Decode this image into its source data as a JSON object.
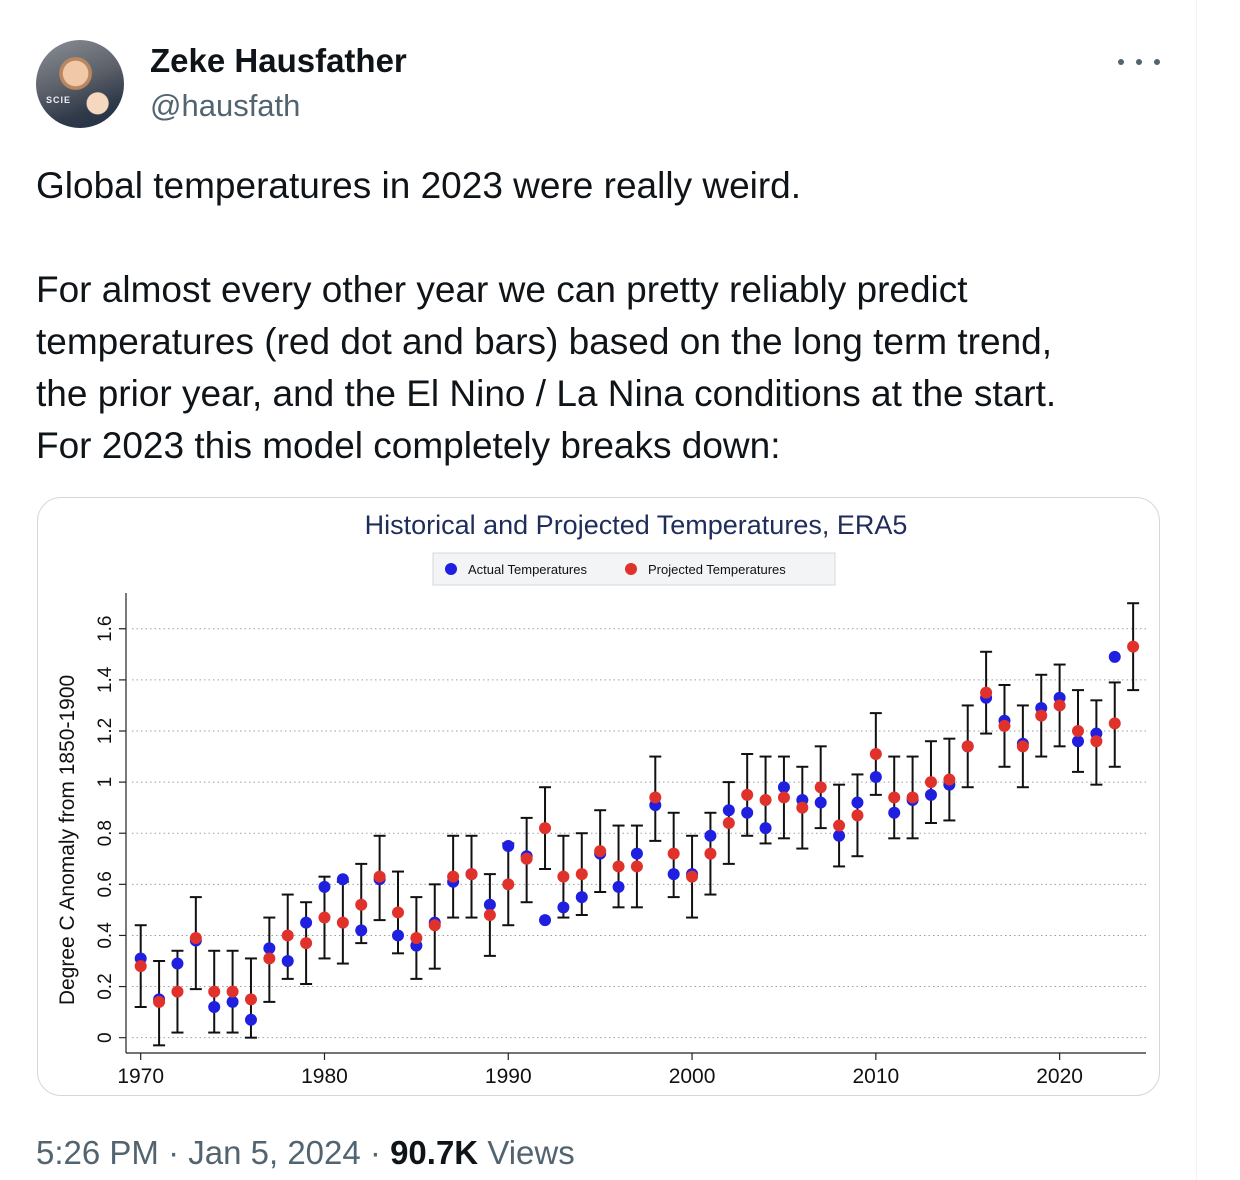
{
  "author": {
    "name": "Zeke Hausfather",
    "handle": "@hausfath",
    "avatar_text": "SCIE"
  },
  "tweet": {
    "line1": "Global temperatures in 2023 were really weird.",
    "para2": [
      "For almost every other year we can pretty reliably predict",
      "temperatures (red dot and bars) based on the long term trend,",
      "the prior year, and the El Nino / La Nina conditions at the start.",
      "For 2023 this model completely breaks down:"
    ]
  },
  "meta": {
    "time": "5:26 PM",
    "sep": "·",
    "date": "Jan 5, 2024",
    "views_count": "90.7K",
    "views_label": "Views"
  },
  "icons": {
    "more": "more-horizontal-icon"
  },
  "colors": {
    "actual": "#1f1fe0",
    "projected": "#e0312b",
    "title": "#1f2d5a"
  },
  "chart_data": {
    "type": "scatter",
    "title": "Historical and Projected Temperatures, ERA5",
    "ylabel": "Degree C Anomaly from 1850-1900",
    "xlabel": "",
    "xlim": [
      1969.2,
      2024.7
    ],
    "ylim": [
      -0.06,
      1.74
    ],
    "xticks": [
      1970,
      1980,
      1990,
      2000,
      2010,
      2020
    ],
    "yticks": [
      0,
      0.2,
      0.4,
      0.6,
      0.8,
      1,
      1.2,
      1.4,
      1.6
    ],
    "ytick_labels": [
      "0",
      "0.2",
      "0.4",
      "0.6",
      "0.8",
      "1",
      "1.2",
      "1.4",
      "1.6"
    ],
    "grid": "horizontal dotted",
    "legend_placement": "top-center",
    "series": [
      {
        "name": "Actual Temperatures",
        "color": "#1f1fe0",
        "x": [
          1970,
          1971,
          1972,
          1973,
          1974,
          1975,
          1976,
          1977,
          1978,
          1979,
          1980,
          1981,
          1982,
          1983,
          1984,
          1985,
          1986,
          1987,
          1988,
          1989,
          1990,
          1991,
          1992,
          1993,
          1994,
          1995,
          1996,
          1997,
          1998,
          1999,
          2000,
          2001,
          2002,
          2003,
          2004,
          2005,
          2006,
          2007,
          2008,
          2009,
          2010,
          2011,
          2012,
          2013,
          2014,
          2015,
          2016,
          2017,
          2018,
          2019,
          2020,
          2021,
          2022,
          2023
        ],
        "y": [
          0.31,
          0.15,
          0.29,
          0.38,
          0.12,
          0.14,
          0.07,
          0.35,
          0.3,
          0.45,
          0.59,
          0.62,
          0.42,
          0.62,
          0.4,
          0.36,
          0.45,
          0.61,
          0.64,
          0.52,
          0.75,
          0.71,
          0.46,
          0.51,
          0.55,
          0.72,
          0.59,
          0.72,
          0.91,
          0.64,
          0.64,
          0.79,
          0.89,
          0.88,
          0.82,
          0.98,
          0.93,
          0.92,
          0.79,
          0.92,
          1.02,
          0.88,
          0.93,
          0.95,
          0.99,
          1.14,
          1.33,
          1.24,
          1.15,
          1.29,
          1.33,
          1.16,
          1.19,
          1.49
        ]
      },
      {
        "name": "Projected Temperatures",
        "color": "#e0312b",
        "x": [
          1970,
          1971,
          1972,
          1973,
          1974,
          1975,
          1976,
          1977,
          1978,
          1979,
          1980,
          1981,
          1982,
          1983,
          1984,
          1985,
          1986,
          1987,
          1988,
          1989,
          1990,
          1991,
          1992,
          1993,
          1994,
          1995,
          1996,
          1997,
          1998,
          1999,
          2000,
          2001,
          2002,
          2003,
          2004,
          2005,
          2006,
          2007,
          2008,
          2009,
          2010,
          2011,
          2012,
          2013,
          2014,
          2015,
          2016,
          2017,
          2018,
          2019,
          2020,
          2021,
          2022,
          2023,
          2024
        ],
        "y": [
          0.28,
          0.14,
          0.18,
          0.39,
          0.18,
          0.18,
          0.15,
          0.31,
          0.4,
          0.37,
          0.47,
          0.45,
          0.52,
          0.63,
          0.49,
          0.39,
          0.44,
          0.63,
          0.64,
          0.48,
          0.6,
          0.7,
          0.82,
          0.63,
          0.64,
          0.73,
          0.67,
          0.67,
          0.94,
          0.72,
          0.63,
          0.72,
          0.84,
          0.95,
          0.93,
          0.94,
          0.9,
          0.98,
          0.83,
          0.87,
          1.11,
          0.94,
          0.94,
          1.0,
          1.01,
          1.14,
          1.35,
          1.22,
          1.14,
          1.26,
          1.3,
          1.2,
          1.16,
          1.23,
          1.53
        ],
        "err_low": [
          0.12,
          -0.03,
          0.02,
          0.19,
          0.02,
          0.02,
          0.0,
          0.14,
          0.23,
          0.21,
          0.31,
          0.29,
          0.37,
          0.46,
          0.33,
          0.23,
          0.27,
          0.47,
          0.47,
          0.32,
          0.44,
          0.53,
          0.66,
          0.47,
          0.48,
          0.57,
          0.51,
          0.51,
          0.77,
          0.55,
          0.47,
          0.56,
          0.68,
          0.79,
          0.76,
          0.78,
          0.74,
          0.82,
          0.67,
          0.71,
          0.95,
          0.78,
          0.78,
          0.84,
          0.85,
          0.98,
          1.19,
          1.06,
          0.98,
          1.1,
          1.14,
          1.04,
          0.99,
          1.06,
          1.36
        ],
        "err_high": [
          0.44,
          0.3,
          0.34,
          0.55,
          0.34,
          0.34,
          0.31,
          0.47,
          0.56,
          0.53,
          0.63,
          0.61,
          0.68,
          0.79,
          0.65,
          0.55,
          0.6,
          0.79,
          0.79,
          0.64,
          0.76,
          0.86,
          0.98,
          0.79,
          0.8,
          0.89,
          0.83,
          0.83,
          1.1,
          0.88,
          0.79,
          0.88,
          1.0,
          1.11,
          1.1,
          1.1,
          1.06,
          1.14,
          0.99,
          1.03,
          1.27,
          1.1,
          1.1,
          1.16,
          1.17,
          1.3,
          1.51,
          1.38,
          1.3,
          1.42,
          1.46,
          1.36,
          1.32,
          1.39,
          1.7
        ]
      }
    ]
  }
}
